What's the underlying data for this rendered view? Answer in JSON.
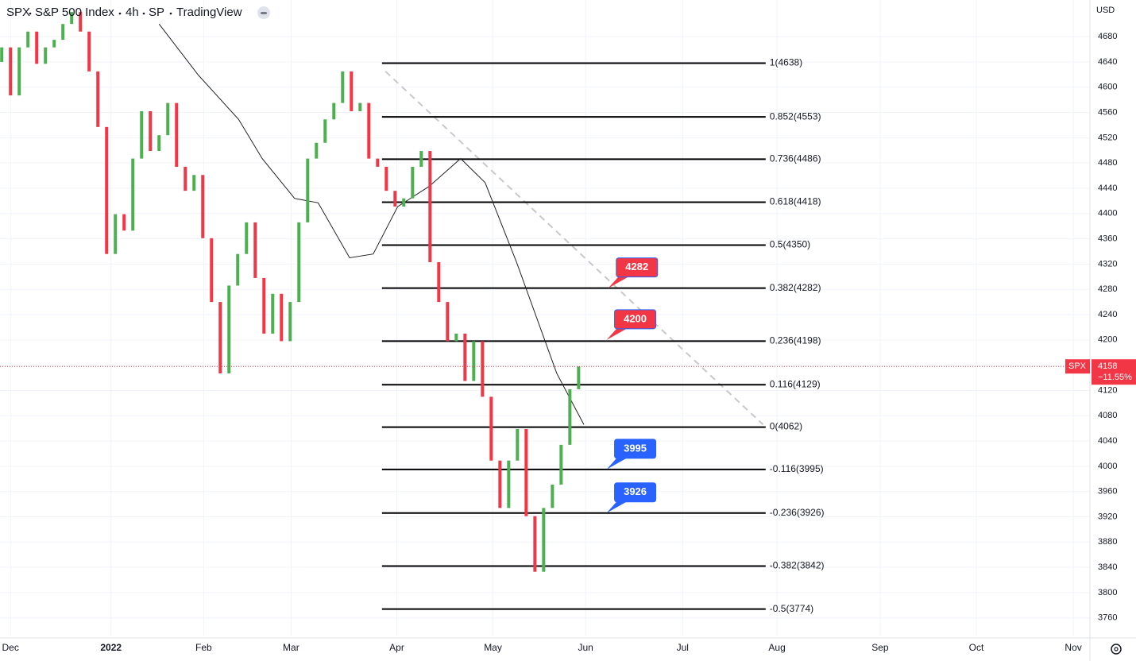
{
  "chart_data": {
    "type": "candlestick",
    "header": {
      "symbol": "SPX",
      "name": "S&P 500 Index",
      "interval": "4h",
      "exchange": "SP",
      "source": "TradingView"
    },
    "currency": "USD",
    "x": [
      0,
      1,
      2,
      3,
      4,
      5,
      6,
      7,
      8,
      9,
      10,
      11,
      12,
      13,
      14,
      15,
      16,
      17,
      18,
      19,
      20,
      21,
      22,
      23,
      24,
      25,
      26,
      27,
      28,
      29,
      30,
      31,
      32,
      33,
      34,
      35,
      36,
      37,
      38,
      39,
      40,
      41,
      42,
      43,
      44,
      45,
      46,
      47,
      48,
      49,
      50,
      51,
      52,
      53,
      54,
      55,
      56,
      57,
      58,
      59,
      60,
      61,
      62,
      63,
      64,
      65,
      66
    ],
    "open": [
      4640,
      4663,
      4587,
      4663,
      4688,
      4637,
      4663,
      4675,
      4700,
      4719,
      4688,
      4625,
      4537,
      4336,
      4399,
      4373,
      4487,
      4562,
      4499,
      4524,
      4575,
      4474,
      4436,
      4461,
      4361,
      4260,
      4147,
      4286,
      4336,
      4386,
      4298,
      4210,
      4273,
      4198,
      4260,
      4386,
      4487,
      4512,
      4549,
      4575,
      4625,
      4562,
      4575,
      4487,
      4474,
      4436,
      4411,
      4424,
      4474,
      4499,
      4323,
      4260,
      4198,
      4210,
      4135,
      4198,
      4110,
      4009,
      3934,
      4009,
      4059,
      3921,
      3833,
      3934,
      3971,
      4034,
      4122
    ],
    "close": [
      4663,
      4587,
      4663,
      4688,
      4637,
      4663,
      4675,
      4700,
      4719,
      4688,
      4625,
      4537,
      4336,
      4399,
      4373,
      4487,
      4562,
      4499,
      4524,
      4575,
      4474,
      4436,
      4461,
      4361,
      4260,
      4147,
      4286,
      4336,
      4386,
      4298,
      4210,
      4273,
      4198,
      4260,
      4386,
      4487,
      4512,
      4549,
      4575,
      4625,
      4562,
      4575,
      4487,
      4474,
      4436,
      4411,
      4424,
      4474,
      4499,
      4323,
      4260,
      4198,
      4210,
      4135,
      4198,
      4110,
      4009,
      3934,
      4009,
      4059,
      3921,
      3833,
      3934,
      3971,
      4034,
      4122,
      4158
    ],
    "up_color": "#4caf50",
    "down_color": "#f23645",
    "moving_average": {
      "color": "#222222",
      "x": [
        18,
        22.5,
        27.1,
        29.8,
        33.5,
        36.2,
        39.8,
        42.5,
        45.3,
        48.9,
        52.5,
        55.3,
        58.9,
        63.5,
        66.6
      ],
      "values": [
        4700,
        4619,
        4549,
        4487,
        4424,
        4417,
        4330,
        4336,
        4411,
        4443,
        4487,
        4449,
        4323,
        4147,
        4066
      ]
    },
    "trendline": {
      "color": "#c8c8c8",
      "x": [
        43.9,
        87.1
      ],
      "values": [
        4625,
        4066
      ]
    },
    "fib_x": [
      43.5,
      87.4
    ],
    "fib_levels": [
      {
        "label": "1(4638)",
        "value": 4638
      },
      {
        "label": "0.852(4553)",
        "value": 4553
      },
      {
        "label": "0.736(4486)",
        "value": 4486
      },
      {
        "label": "0.618(4418)",
        "value": 4418
      },
      {
        "label": "0.5(4350)",
        "value": 4350
      },
      {
        "label": "0.382(4282)",
        "value": 4282
      },
      {
        "label": "0.236(4198)",
        "value": 4198
      },
      {
        "label": "0.116(4129)",
        "value": 4129
      },
      {
        "label": "0(4062)",
        "value": 4062
      },
      {
        "label": "-0.116(3995)",
        "value": 3995
      },
      {
        "label": "-0.236(3926)",
        "value": 3926
      },
      {
        "label": "-0.382(3842)",
        "value": 3842
      },
      {
        "label": "-0.5(3774)",
        "value": 3774
      }
    ],
    "callouts": [
      {
        "value": 4282,
        "x": 69.4,
        "color": "#f23645"
      },
      {
        "value": 4200,
        "x": 69.2,
        "color": "#f23645"
      },
      {
        "value": 3995,
        "x": 69.2,
        "color": "#2962ff"
      },
      {
        "value": 3926,
        "x": 69.2,
        "color": "#2962ff"
      }
    ],
    "last": {
      "name": "SPX",
      "value": 4158,
      "change": "−11.55%",
      "color": "#f23645"
    },
    "xlim": [
      -0.2,
      124.5
    ],
    "ylim": [
      3732,
      4738
    ],
    "xticks": [
      {
        "value": 1,
        "label": "Dec"
      },
      {
        "value": 12.5,
        "label": "2022"
      },
      {
        "value": 23.1,
        "label": "Feb"
      },
      {
        "value": 33.1,
        "label": "Mar"
      },
      {
        "value": 45.2,
        "label": "Apr"
      },
      {
        "value": 56.2,
        "label": "May"
      },
      {
        "value": 66.8,
        "label": "Jun"
      },
      {
        "value": 77.9,
        "label": "Jul"
      },
      {
        "value": 88.7,
        "label": "Aug"
      },
      {
        "value": 100.5,
        "label": "Sep"
      },
      {
        "value": 111.5,
        "label": "Oct"
      },
      {
        "value": 122.6,
        "label": "Nov"
      }
    ],
    "yticks": [
      3760,
      3800,
      3840,
      3880,
      3920,
      3960,
      4000,
      4040,
      4080,
      4120,
      4160,
      4200,
      4240,
      4280,
      4320,
      4360,
      4400,
      4440,
      4480,
      4520,
      4560,
      4600,
      4640,
      4680
    ],
    "grid": true
  }
}
